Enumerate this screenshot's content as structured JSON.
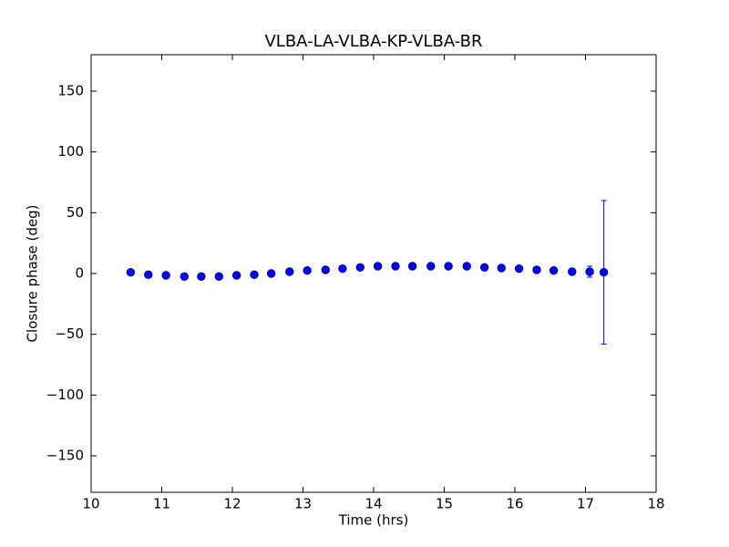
{
  "chart_data": {
    "type": "errorbar",
    "title": "VLBA-LA-VLBA-KP-VLBA-BR",
    "xlabel": "Time (hrs)",
    "ylabel": "Closure phase (deg)",
    "x": [
      10.56,
      10.81,
      11.06,
      11.32,
      11.56,
      11.81,
      12.06,
      12.31,
      12.55,
      12.81,
      13.06,
      13.32,
      13.56,
      13.81,
      14.06,
      14.31,
      14.55,
      14.81,
      15.06,
      15.32,
      15.57,
      15.81,
      16.06,
      16.31,
      16.55,
      16.81,
      17.06,
      17.26
    ],
    "values": [
      1,
      -1,
      -1.5,
      -2.5,
      -2.5,
      -2.5,
      -1.5,
      -1,
      0,
      1.5,
      2.5,
      3,
      4,
      5,
      6,
      6,
      6,
      6,
      6,
      6,
      5,
      4.5,
      4,
      3,
      2.5,
      1.5,
      1.5,
      1
    ],
    "errors": [
      2,
      1.5,
      1.5,
      1.5,
      1.5,
      1.5,
      1.5,
      1.5,
      1.5,
      1.5,
      1.5,
      1.5,
      1.5,
      1.5,
      1.5,
      1.5,
      1.5,
      1.5,
      1.5,
      1.5,
      1.5,
      1.5,
      1.5,
      1.5,
      1.5,
      1.5,
      4.5,
      59
    ],
    "color": "#0000ff",
    "xlim": [
      10,
      18
    ],
    "xticks": [
      10,
      11,
      12,
      13,
      14,
      15,
      16,
      17,
      18
    ],
    "ylim": [
      -180,
      180
    ],
    "yticks": [
      {
        "value": -150,
        "label": "−150"
      },
      {
        "value": -100,
        "label": "−100"
      },
      {
        "value": -50,
        "label": "−50"
      },
      0,
      50,
      100,
      150
    ]
  }
}
